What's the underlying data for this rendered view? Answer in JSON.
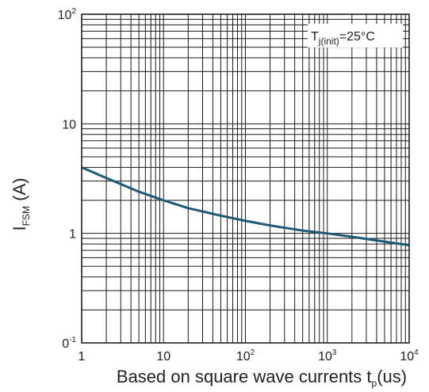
{
  "chart_data": {
    "type": "line",
    "x_scale": "log",
    "y_scale": "log",
    "xlim": [
      1,
      10000
    ],
    "ylim": [
      0.1,
      100
    ],
    "grid": true,
    "x_ticks": [
      {
        "value": 1,
        "base": "1",
        "exp": ""
      },
      {
        "value": 10,
        "base": "10",
        "exp": ""
      },
      {
        "value": 100,
        "base": "10",
        "exp": "2"
      },
      {
        "value": 1000,
        "base": "10",
        "exp": "3"
      },
      {
        "value": 10000,
        "base": "10",
        "exp": "4"
      }
    ],
    "y_ticks": [
      {
        "value": 100,
        "base": "10",
        "exp": "2"
      },
      {
        "value": 10,
        "base": "10",
        "exp": ""
      },
      {
        "value": 1,
        "base": "1",
        "exp": ""
      },
      {
        "value": 0.1,
        "base": "0",
        "exp": "-1"
      }
    ],
    "xlabel": {
      "main": "Based on square wave currents t",
      "sub": "p",
      "tail": "(us)"
    },
    "ylabel": {
      "main": "I",
      "sub": "FSM",
      "tail": " (A)"
    },
    "annotation": {
      "main": "T",
      "sub": "j(init)",
      "tail": "=25°C"
    },
    "series": [
      {
        "color": "#1e5a78",
        "x": [
          1,
          2,
          5,
          10,
          20,
          50,
          100,
          200,
          500,
          1000,
          2000,
          5000,
          10000
        ],
        "y": [
          4.0,
          3.2,
          2.4,
          2.0,
          1.7,
          1.45,
          1.3,
          1.18,
          1.06,
          1.0,
          0.93,
          0.84,
          0.78
        ]
      }
    ]
  }
}
